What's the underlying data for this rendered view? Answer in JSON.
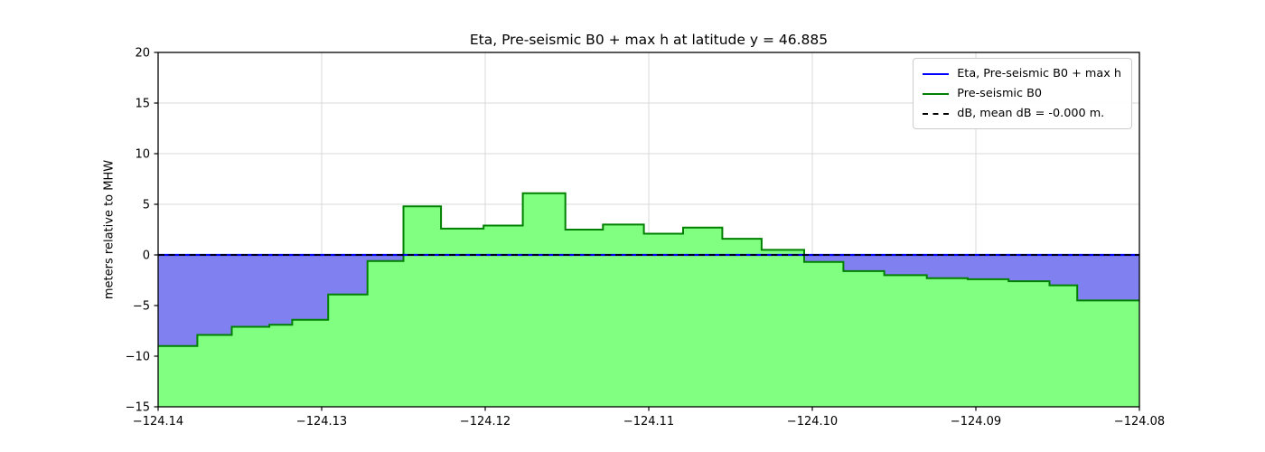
{
  "chart": {
    "title": "Eta, Pre-seismic B0 + max h at latitude y = 46.885",
    "ylabel": "meters relative to MHW"
  },
  "legend": {
    "items": [
      {
        "label": "Eta, Pre-seismic B0 + max h",
        "color": "#0000ff",
        "dash": false
      },
      {
        "label": "Pre-seismic B0",
        "color": "#008000",
        "dash": false
      },
      {
        "label": "dB, mean dB = -0.000 m.",
        "color": "#000000",
        "dash": true
      }
    ]
  },
  "chart_data": {
    "type": "area",
    "title": "Eta, Pre-seismic B0 + max h at latitude y = 46.885",
    "xlabel": "",
    "ylabel": "meters relative to MHW",
    "xlim": [
      -124.14,
      -124.08
    ],
    "ylim": [
      -15,
      20
    ],
    "xticks": [
      -124.14,
      -124.13,
      -124.12,
      -124.11,
      -124.1,
      -124.09,
      -124.08
    ],
    "xtick_labels": [
      "−124.14",
      "−124.13",
      "−124.12",
      "−124.11",
      "−124.10",
      "−124.09",
      "−124.08"
    ],
    "yticks": [
      -15,
      -10,
      -5,
      0,
      5,
      10,
      15,
      20
    ],
    "ytick_labels": [
      "−15",
      "−10",
      "−5",
      "0",
      "5",
      "10",
      "15",
      "20"
    ],
    "grid": true,
    "legend_position": "upper right",
    "background": "#ffffff",
    "grid_color": "#d9d9d9",
    "series": [
      {
        "name": "Eta, Pre-seismic B0 + max h",
        "kind": "hline",
        "y": 0.0,
        "color": "#0000ff",
        "water_fill": "#8080f0",
        "note": "flat water surface at 0 m; fill between eta and B0 where B0 < 0"
      },
      {
        "name": "Pre-seismic B0",
        "kind": "step",
        "color": "#008000",
        "fill": "#80ff80",
        "x_edges": [
          -124.14,
          -124.1376,
          -124.1355,
          -124.1332,
          -124.1318,
          -124.1296,
          -124.1272,
          -124.125,
          -124.1227,
          -124.1201,
          -124.1177,
          -124.1151,
          -124.1128,
          -124.1103,
          -124.1079,
          -124.1055,
          -124.1031,
          -124.1005,
          -124.0981,
          -124.0956,
          -124.093,
          -124.0905,
          -124.088,
          -124.0855,
          -124.0838,
          -124.08
        ],
        "values": [
          -9.0,
          -7.9,
          -7.1,
          -6.9,
          -6.4,
          -3.9,
          -0.6,
          4.8,
          2.6,
          2.9,
          6.1,
          2.5,
          3.0,
          2.1,
          2.7,
          1.6,
          0.5,
          -0.7,
          -1.6,
          -2.0,
          -2.3,
          -2.4,
          -2.6,
          -3.0,
          -4.5
        ]
      },
      {
        "name": "dB, mean dB = -0.000 m.",
        "kind": "hline_dashed",
        "y": 0.0,
        "color": "#000000"
      }
    ]
  }
}
